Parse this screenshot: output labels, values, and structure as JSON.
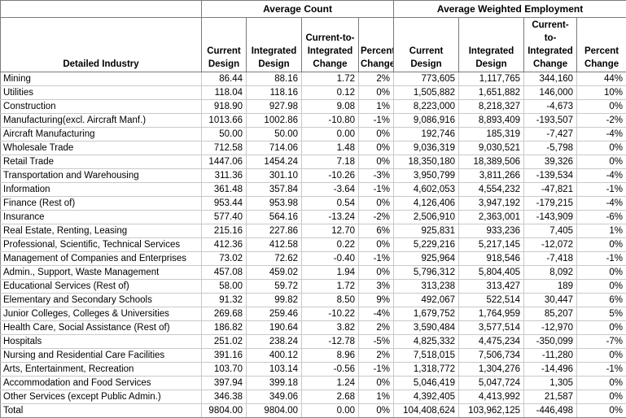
{
  "table": {
    "group_headers": {
      "average_count": "Average Count",
      "average_weighted_employment": "Average Weighted Employment"
    },
    "columns": [
      {
        "name": "detailed-industry",
        "label": "Detailed Industry"
      },
      {
        "name": "count-current-design",
        "label": "Current\nDesign"
      },
      {
        "name": "count-integrated-design",
        "label": "Integrated\nDesign"
      },
      {
        "name": "count-current-to-integrated-change",
        "label": "Current-to-\nIntegrated\nChange"
      },
      {
        "name": "count-percent-change",
        "label": "Percent\nChange"
      },
      {
        "name": "employment-current-design",
        "label": "Current\nDesign"
      },
      {
        "name": "employment-integrated-design",
        "label": "Integrated\nDesign"
      },
      {
        "name": "employment-current-to-integrated-change",
        "label": "Current-to-\nIntegrated\nChange"
      },
      {
        "name": "employment-percent-change",
        "label": "Percent\nChange"
      }
    ],
    "rows": [
      [
        "Mining",
        "86.44",
        "88.16",
        "1.72",
        "2%",
        "773,605",
        "1,117,765",
        "344,160",
        "44%"
      ],
      [
        "Utilities",
        "118.04",
        "118.16",
        "0.12",
        "0%",
        "1,505,882",
        "1,651,882",
        "146,000",
        "10%"
      ],
      [
        "Construction",
        "918.90",
        "927.98",
        "9.08",
        "1%",
        "8,223,000",
        "8,218,327",
        "-4,673",
        "0%"
      ],
      [
        "Manufacturing(excl. Aircraft Manf.)",
        "1013.66",
        "1002.86",
        "-10.80",
        "-1%",
        "9,086,916",
        "8,893,409",
        "-193,507",
        "-2%"
      ],
      [
        "Aircraft Manufacturing",
        "50.00",
        "50.00",
        "0.00",
        "0%",
        "192,746",
        "185,319",
        "-7,427",
        "-4%"
      ],
      [
        "Wholesale Trade",
        "712.58",
        "714.06",
        "1.48",
        "0%",
        "9,036,319",
        "9,030,521",
        "-5,798",
        "0%"
      ],
      [
        "Retail Trade",
        "1447.06",
        "1454.24",
        "7.18",
        "0%",
        "18,350,180",
        "18,389,506",
        "39,326",
        "0%"
      ],
      [
        "Transportation and Warehousing",
        "311.36",
        "301.10",
        "-10.26",
        "-3%",
        "3,950,799",
        "3,811,266",
        "-139,534",
        "-4%"
      ],
      [
        "Information",
        "361.48",
        "357.84",
        "-3.64",
        "-1%",
        "4,602,053",
        "4,554,232",
        "-47,821",
        "-1%"
      ],
      [
        "Finance (Rest of)",
        "953.44",
        "953.98",
        "0.54",
        "0%",
        "4,126,406",
        "3,947,192",
        "-179,215",
        "-4%"
      ],
      [
        "Insurance",
        "577.40",
        "564.16",
        "-13.24",
        "-2%",
        "2,506,910",
        "2,363,001",
        "-143,909",
        "-6%"
      ],
      [
        "Real Estate, Renting, Leasing",
        "215.16",
        "227.86",
        "12.70",
        "6%",
        "925,831",
        "933,236",
        "7,405",
        "1%"
      ],
      [
        "Professional, Scientific, Technical Services",
        "412.36",
        "412.58",
        "0.22",
        "0%",
        "5,229,216",
        "5,217,145",
        "-12,072",
        "0%"
      ],
      [
        "Management of Companies and Enterprises",
        "73.02",
        "72.62",
        "-0.40",
        "-1%",
        "925,964",
        "918,546",
        "-7,418",
        "-1%"
      ],
      [
        "Admin., Support, Waste Management",
        "457.08",
        "459.02",
        "1.94",
        "0%",
        "5,796,312",
        "5,804,405",
        "8,092",
        "0%"
      ],
      [
        "Educational Services (Rest of)",
        "58.00",
        "59.72",
        "1.72",
        "3%",
        "313,238",
        "313,427",
        "189",
        "0%"
      ],
      [
        "Elementary and Secondary Schools",
        "91.32",
        "99.82",
        "8.50",
        "9%",
        "492,067",
        "522,514",
        "30,447",
        "6%"
      ],
      [
        "Junior Colleges, Colleges & Universities",
        "269.68",
        "259.46",
        "-10.22",
        "-4%",
        "1,679,752",
        "1,764,959",
        "85,207",
        "5%"
      ],
      [
        "Health Care, Social Assistance (Rest of)",
        "186.82",
        "190.64",
        "3.82",
        "2%",
        "3,590,484",
        "3,577,514",
        "-12,970",
        "0%"
      ],
      [
        "Hospitals",
        "251.02",
        "238.24",
        "-12.78",
        "-5%",
        "4,825,332",
        "4,475,234",
        "-350,099",
        "-7%"
      ],
      [
        "Nursing and Residential Care Facilities",
        "391.16",
        "400.12",
        "8.96",
        "2%",
        "7,518,015",
        "7,506,734",
        "-11,280",
        "0%"
      ],
      [
        "Arts, Entertainment, Recreation",
        "103.70",
        "103.14",
        "-0.56",
        "-1%",
        "1,318,772",
        "1,304,276",
        "-14,496",
        "-1%"
      ],
      [
        "Accommodation and Food Services",
        "397.94",
        "399.18",
        "1.24",
        "0%",
        "5,046,419",
        "5,047,724",
        "1,305",
        "0%"
      ],
      [
        "Other Services (except Public Admin.)",
        "346.38",
        "349.06",
        "2.68",
        "1%",
        "4,392,405",
        "4,413,992",
        "21,587",
        "0%"
      ],
      [
        "Total",
        "9804.00",
        "9804.00",
        "0.00",
        "0%",
        "104,408,624",
        "103,962,125",
        "-446,498",
        "0%"
      ]
    ],
    "colors": {
      "background": "#ffffff",
      "text": "#000000",
      "header_border": "#7a7a7a",
      "grid": "#c9c9c9"
    }
  }
}
